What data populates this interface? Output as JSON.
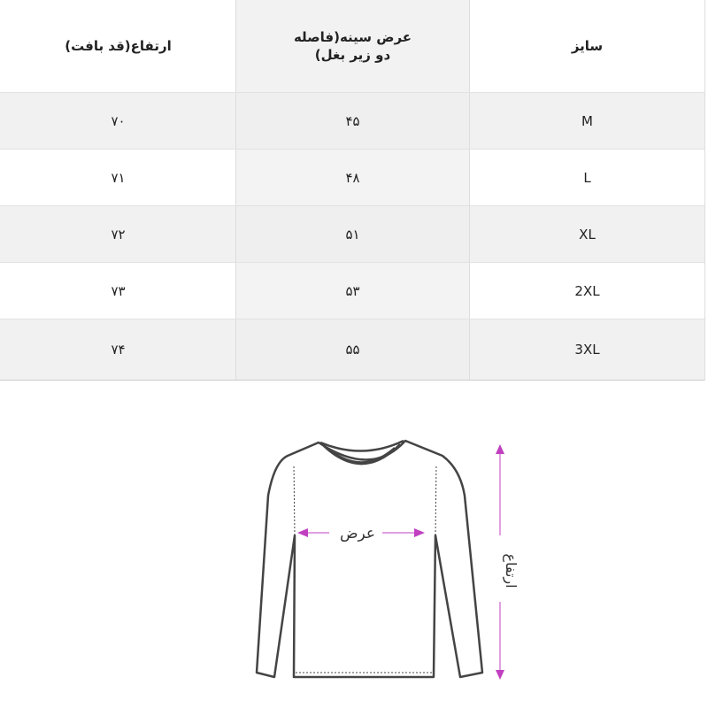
{
  "table": {
    "headers": [
      "سایز",
      "عرض سینه(فاصله دو زیر بغل)",
      "ارتفاع(قد بافت)"
    ],
    "rows": [
      {
        "size": "M",
        "chest": "۴۵",
        "height": "۷۰"
      },
      {
        "size": "L",
        "chest": "۴۸",
        "height": "۷۱"
      },
      {
        "size": "XL",
        "chest": "۵۱",
        "height": "۷۲"
      },
      {
        "size": "2XL",
        "chest": "۵۳",
        "height": "۷۳"
      },
      {
        "size": "3XL",
        "chest": "۵۵",
        "height": "۷۴"
      }
    ]
  },
  "diagram": {
    "width_label": "عرض",
    "height_label": "ارتفاع",
    "arrow_color": "#c040c0",
    "outline_color": "#444444"
  }
}
